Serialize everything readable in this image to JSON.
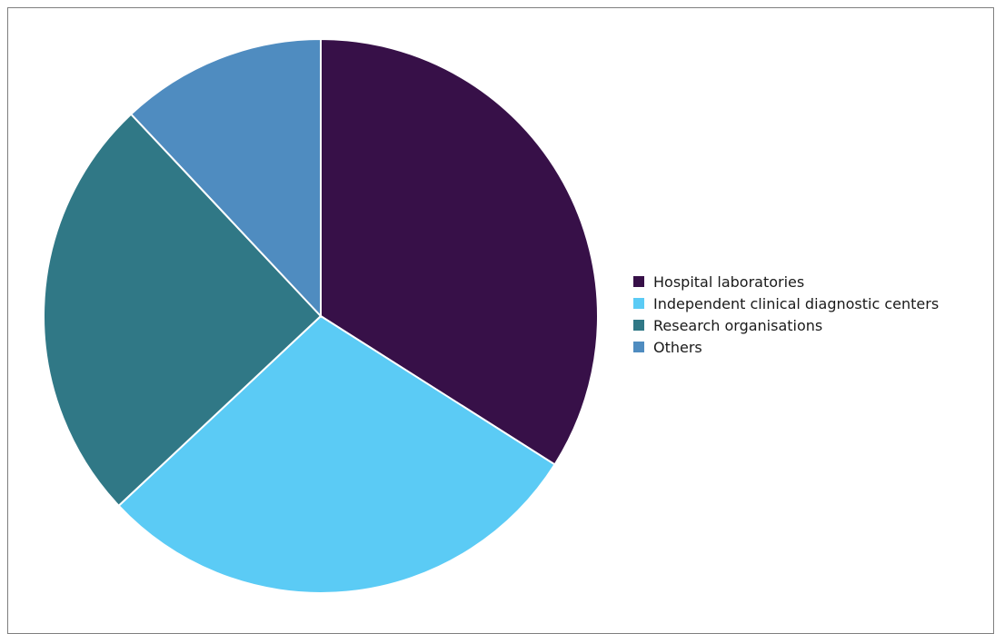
{
  "chart_data": {
    "type": "pie",
    "title": "",
    "legend_position": "right",
    "categories": [
      "Hospital laboratories",
      "Independent clinical diagnostic centers",
      "Research organisations",
      "Others"
    ],
    "values": [
      34,
      29,
      25,
      12
    ],
    "unit": "%",
    "colors": [
      "#371048",
      "#5bcbf5",
      "#307886",
      "#4f8cc0"
    ]
  }
}
